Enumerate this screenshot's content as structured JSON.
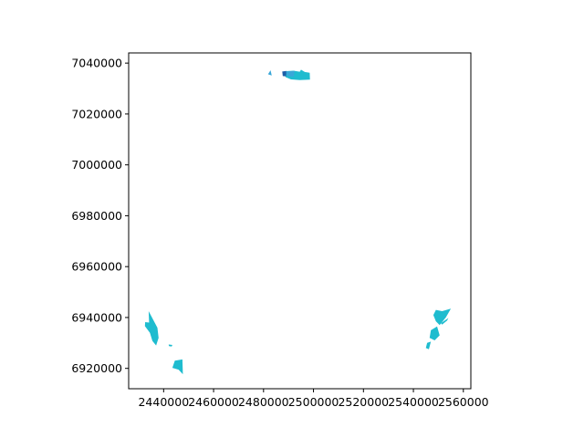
{
  "chart_data": {
    "type": "scatter",
    "title": "",
    "xlabel": "",
    "ylabel": "",
    "xlim": [
      2426000,
      2563000
    ],
    "ylim": [
      6912000,
      7044000
    ],
    "grid": false,
    "xticks": [
      2440000,
      2460000,
      2480000,
      2500000,
      2520000,
      2540000,
      2560000
    ],
    "xtick_labels": [
      "2440000",
      "2460000",
      "2480000",
      "2500000",
      "2520000",
      "2540000",
      "2560000"
    ],
    "yticks": [
      6920000,
      6940000,
      6960000,
      6980000,
      7000000,
      7020000,
      7040000
    ],
    "ytick_labels": [
      "6920000",
      "6940000",
      "6960000",
      "6980000",
      "7000000",
      "7020000",
      "7040000"
    ],
    "colors": {
      "fill": "#1fbccf",
      "dark_fill": "#1f5fa8",
      "mid_fill": "#3aa7d8",
      "axis": "#000000"
    },
    "polygons": [
      {
        "id": "north-cluster-main",
        "color": "fill",
        "points": [
          [
            2488200,
            7036800
          ],
          [
            2492000,
            7037000
          ],
          [
            2494500,
            7036600
          ],
          [
            2495000,
            7037400
          ],
          [
            2496500,
            7036500
          ],
          [
            2498500,
            7036200
          ],
          [
            2498600,
            7033500
          ],
          [
            2494500,
            7033300
          ],
          [
            2491000,
            7033600
          ],
          [
            2488800,
            7034500
          ]
        ]
      },
      {
        "id": "north-cluster-dark",
        "color": "dark_fill",
        "points": [
          [
            2487500,
            7036700
          ],
          [
            2489200,
            7036900
          ],
          [
            2489000,
            7034800
          ],
          [
            2487700,
            7034900
          ]
        ]
      },
      {
        "id": "north-cluster-mid",
        "color": "mid_fill",
        "points": [
          [
            2489000,
            7036700
          ],
          [
            2492500,
            7036900
          ],
          [
            2492000,
            7034700
          ],
          [
            2489500,
            7034800
          ]
        ]
      },
      {
        "id": "north-cluster-small-left",
        "color": "mid_fill",
        "points": [
          [
            2481800,
            7035600
          ],
          [
            2482800,
            7037200
          ],
          [
            2483300,
            7035100
          ]
        ]
      },
      {
        "id": "southwest-main",
        "color": "fill",
        "points": [
          [
            2434000,
            6942500
          ],
          [
            2437500,
            6936000
          ],
          [
            2438000,
            6932000
          ],
          [
            2437000,
            6929000
          ],
          [
            2435500,
            6930800
          ],
          [
            2434500,
            6934000
          ],
          [
            2432500,
            6936600
          ],
          [
            2432600,
            6938200
          ],
          [
            2434200,
            6938000
          ]
        ]
      },
      {
        "id": "southwest-dot",
        "color": "fill",
        "points": [
          [
            2442000,
            6929400
          ],
          [
            2443500,
            6929200
          ],
          [
            2443200,
            6928600
          ],
          [
            2442100,
            6928800
          ]
        ]
      },
      {
        "id": "southwest-lower",
        "color": "fill",
        "points": [
          [
            2444500,
            6923000
          ],
          [
            2447500,
            6923500
          ],
          [
            2447700,
            6917700
          ],
          [
            2446000,
            6919500
          ],
          [
            2443500,
            6920200
          ]
        ]
      },
      {
        "id": "southeast-upper",
        "color": "fill",
        "points": [
          [
            2549000,
            6943000
          ],
          [
            2551500,
            6942500
          ],
          [
            2555000,
            6943500
          ],
          [
            2553000,
            6940000
          ],
          [
            2550500,
            6937000
          ],
          [
            2549000,
            6938500
          ],
          [
            2548000,
            6941000
          ]
        ]
      },
      {
        "id": "southeast-middle",
        "color": "fill",
        "points": [
          [
            2547000,
            6935000
          ],
          [
            2549500,
            6936500
          ],
          [
            2550500,
            6933000
          ],
          [
            2548500,
            6931000
          ],
          [
            2546500,
            6932000
          ]
        ]
      },
      {
        "id": "southeast-lower",
        "color": "fill",
        "points": [
          [
            2545500,
            6930000
          ],
          [
            2547000,
            6930500
          ],
          [
            2546200,
            6927500
          ],
          [
            2545000,
            6928000
          ]
        ]
      },
      {
        "id": "southeast-sliver",
        "color": "fill",
        "points": [
          [
            2551000,
            6937800
          ],
          [
            2554000,
            6939800
          ],
          [
            2553500,
            6938800
          ],
          [
            2551500,
            6937200
          ]
        ]
      }
    ]
  }
}
